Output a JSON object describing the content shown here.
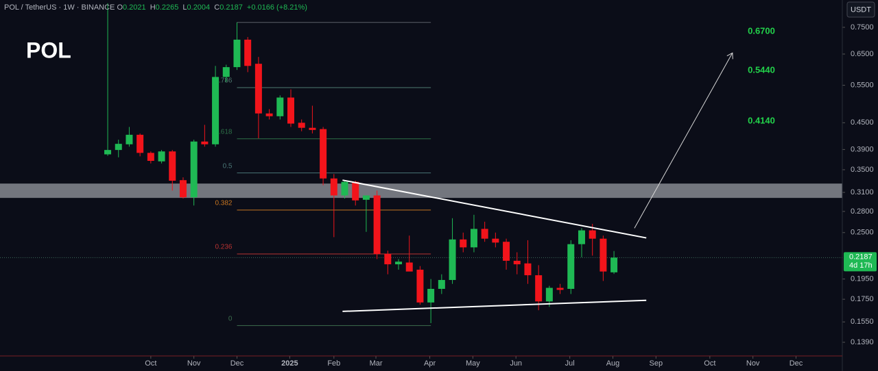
{
  "header": {
    "symbol": "POL / TetherUS · 1W · BINANCE",
    "o": "O",
    "h": "H",
    "l": "L",
    "c": "C",
    "change": "+0.0166 (+8.21%)"
  },
  "chart_data": {
    "type": "candlestick",
    "title": "POL",
    "unit": "USDT",
    "log_scale": true,
    "x": [
      0,
      1,
      2,
      3,
      4,
      5,
      6,
      7,
      8,
      9,
      10,
      11,
      12,
      13,
      14,
      15,
      16,
      17,
      18,
      19,
      20,
      21,
      22,
      23,
      24,
      25,
      26,
      27,
      28,
      29,
      30,
      31,
      32,
      33,
      34,
      35,
      36,
      37,
      38,
      39,
      40,
      41,
      42,
      43,
      44,
      45,
      46,
      47
    ],
    "open": [
      0.38,
      0.389,
      0.401,
      0.422,
      0.383,
      0.366,
      0.386,
      0.331,
      0.302,
      0.407,
      0.401,
      0.575,
      0.606,
      0.702,
      0.617,
      0.473,
      0.466,
      0.515,
      0.45,
      0.438,
      0.435,
      0.334,
      0.305,
      0.328,
      0.298,
      0.305,
      0.223,
      0.211,
      0.213,
      0.205,
      0.172,
      0.185,
      0.194,
      0.241,
      0.231,
      0.255,
      0.242,
      0.238,
      0.215,
      0.212,
      0.199,
      0.173,
      0.186,
      0.185,
      0.235,
      0.253,
      0.242,
      0.2021
    ],
    "high": [
      0.853,
      0.411,
      0.44,
      0.425,
      0.386,
      0.389,
      0.389,
      0.336,
      0.411,
      0.445,
      0.61,
      0.614,
      0.77,
      0.712,
      0.64,
      0.484,
      0.521,
      0.538,
      0.458,
      0.493,
      0.44,
      0.342,
      0.33,
      0.33,
      0.305,
      0.313,
      0.227,
      0.217,
      0.246,
      0.209,
      0.195,
      0.2,
      0.27,
      0.25,
      0.275,
      0.265,
      0.25,
      0.242,
      0.225,
      0.24,
      0.21,
      0.188,
      0.19,
      0.24,
      0.256,
      0.262,
      0.246,
      0.2265
    ],
    "low": [
      0.377,
      0.374,
      0.396,
      0.376,
      0.362,
      0.362,
      0.313,
      0.3,
      0.289,
      0.396,
      0.396,
      0.56,
      0.597,
      0.59,
      0.414,
      0.458,
      0.458,
      0.44,
      0.43,
      0.425,
      0.322,
      0.244,
      0.3,
      0.289,
      0.251,
      0.217,
      0.2,
      0.205,
      0.205,
      0.17,
      0.154,
      0.18,
      0.19,
      0.225,
      0.225,
      0.238,
      0.231,
      0.205,
      0.2,
      0.19,
      0.165,
      0.168,
      0.18,
      0.18,
      0.219,
      0.221,
      0.193,
      0.2004
    ],
    "close": [
      0.389,
      0.402,
      0.422,
      0.383,
      0.367,
      0.386,
      0.33,
      0.302,
      0.407,
      0.401,
      0.575,
      0.606,
      0.702,
      0.61,
      0.473,
      0.466,
      0.515,
      0.448,
      0.438,
      0.433,
      0.334,
      0.305,
      0.328,
      0.297,
      0.305,
      0.223,
      0.211,
      0.214,
      0.203,
      0.172,
      0.185,
      0.194,
      0.241,
      0.231,
      0.255,
      0.242,
      0.237,
      0.215,
      0.211,
      0.199,
      0.173,
      0.186,
      0.184,
      0.235,
      0.253,
      0.242,
      0.203,
      0.2187
    ],
    "up_color": "#1fb954",
    "down_color": "#f2141b",
    "xlim": [
      -10.0,
      68.2
    ],
    "xticks": [
      {
        "value": 4.0,
        "label": "Oct"
      },
      {
        "value": 8.0,
        "label": "Nov"
      },
      {
        "value": 12.0,
        "label": "Dec"
      },
      {
        "value": 16.9,
        "label": "2025"
      },
      {
        "value": 21.0,
        "label": "Feb"
      },
      {
        "value": 24.9,
        "label": "Mar"
      },
      {
        "value": 29.9,
        "label": "Apr"
      },
      {
        "value": 33.9,
        "label": "May"
      },
      {
        "value": 37.9,
        "label": "Jun"
      },
      {
        "value": 42.9,
        "label": "Jul"
      },
      {
        "value": 46.9,
        "label": "Aug"
      },
      {
        "value": 50.9,
        "label": "Sep"
      },
      {
        "value": 55.9,
        "label": "Oct"
      },
      {
        "value": 59.9,
        "label": "Nov"
      },
      {
        "value": 63.9,
        "label": "Dec"
      }
    ],
    "ylim": [
      0.1292,
      0.868
    ],
    "yticks": [
      {
        "value": 0.75,
        "label": "0.7500"
      },
      {
        "value": 0.65,
        "label": "0.6500"
      },
      {
        "value": 0.55,
        "label": "0.5500"
      },
      {
        "value": 0.45,
        "label": "0.4500"
      },
      {
        "value": 0.39,
        "label": "0.3900"
      },
      {
        "value": 0.35,
        "label": "0.3500"
      },
      {
        "value": 0.31,
        "label": "0.3100"
      },
      {
        "value": 0.28,
        "label": "0.2800"
      },
      {
        "value": 0.25,
        "label": "0.2500"
      },
      {
        "value": 0.195,
        "label": "0.1950"
      },
      {
        "value": 0.175,
        "label": "0.1750"
      },
      {
        "value": 0.155,
        "label": "0.1550"
      },
      {
        "value": 0.139,
        "label": "0.1390"
      }
    ],
    "countdown": "4d 17h",
    "zone": {
      "range": [
        0.301,
        0.325
      ],
      "color": "#868991"
    },
    "fib_x": [
      12.0,
      30.0
    ],
    "fib_levels": [
      {
        "label": null,
        "price": 0.77,
        "color": "#5d6068"
      },
      {
        "label": "0.786",
        "price": 0.543,
        "color": "#4f7a70"
      },
      {
        "label": "0.618",
        "price": 0.413,
        "color": "#2e7048"
      },
      {
        "label": "0.5",
        "price": 0.344,
        "color": "#4a7676"
      },
      {
        "label": "0.382",
        "price": 0.282,
        "color": "#c77520"
      },
      {
        "label": "0.236",
        "price": 0.223,
        "color": "#b83232"
      },
      {
        "label": "0",
        "price": 0.152,
        "color": "#3c6e4e"
      }
    ],
    "trendlines": [
      {
        "x": [
          21.8,
          50.0
        ],
        "y": [
          0.331,
          0.243
        ]
      },
      {
        "x": [
          21.8,
          50.0
        ],
        "y": [
          0.164,
          0.174
        ]
      }
    ],
    "projection": {
      "x": [
        48.9,
        58.0
      ],
      "y": [
        0.256,
        0.654
      ]
    },
    "targets": [
      "0.6700",
      "0.5440",
      "0.4140"
    ],
    "target_color": "#22d14a"
  }
}
